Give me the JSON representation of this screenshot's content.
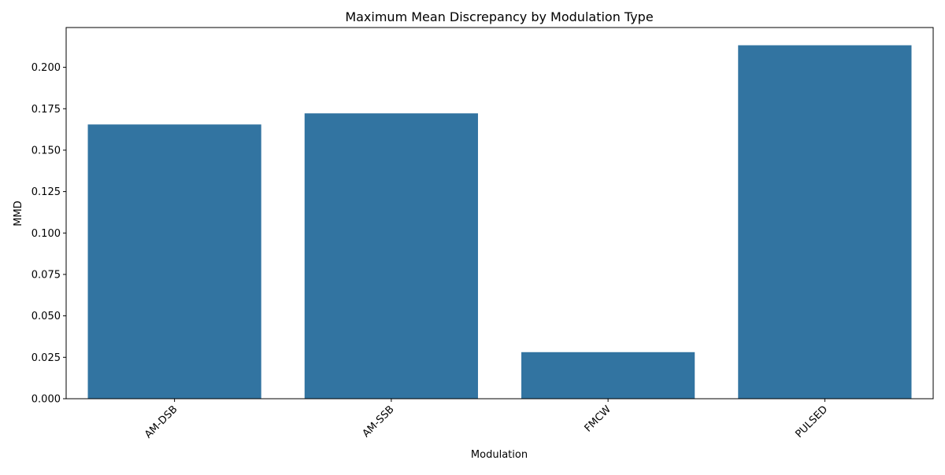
{
  "chart_data": {
    "type": "bar",
    "title": "Maximum Mean Discrepancy by Modulation Type",
    "xlabel": "Modulation",
    "ylabel": "MMD",
    "categories": [
      "AM-DSB",
      "AM-SSB",
      "FMCW",
      "PULSED"
    ],
    "values": [
      0.1655,
      0.1722,
      0.0281,
      0.2133
    ],
    "ylim": [
      0,
      0.224
    ],
    "yticks": [
      0.0,
      0.025,
      0.05,
      0.075,
      0.1,
      0.125,
      0.15,
      0.175,
      0.2
    ],
    "ytick_labels": [
      "0.000",
      "0.025",
      "0.050",
      "0.075",
      "0.100",
      "0.125",
      "0.150",
      "0.175",
      "0.200"
    ],
    "xtick_rotation_deg": 45,
    "grid": false,
    "legend": "none",
    "colors": {
      "bar": "#3274a1",
      "axis": "#000000",
      "background": "#ffffff"
    }
  }
}
